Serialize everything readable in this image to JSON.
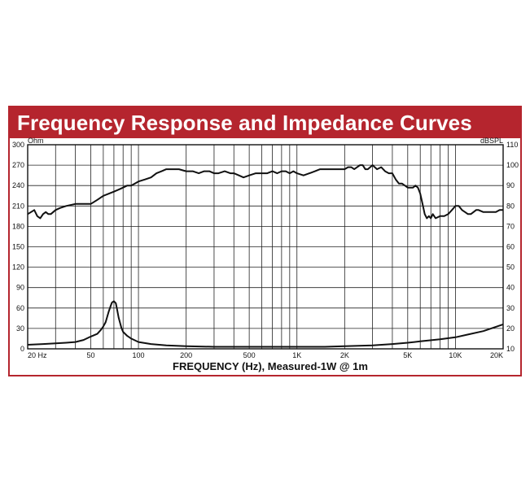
{
  "title": "Frequency Response and Impedance Curves",
  "colors": {
    "frame": "#b5252e",
    "title_bar": "#b5252e",
    "title_text": "#ffffff",
    "grid": "#222222",
    "curve": "#111111"
  },
  "chart_data": {
    "type": "line",
    "title": "Frequency Response and Impedance Curves",
    "xlabel": "FREQUENCY (Hz), Measured-1W @ 1m",
    "ylabel_left": "Ohm",
    "ylabel_right": "dBSPL",
    "x_scale": "log",
    "xlim": [
      20,
      20000
    ],
    "ylim_left": [
      0,
      300
    ],
    "ylim_right": [
      10,
      110
    ],
    "grid": true,
    "x_tick_labels": [
      "20 Hz",
      "50",
      "100",
      "200",
      "500",
      "1K",
      "2K",
      "5K",
      "10K",
      "20K"
    ],
    "x_tick_values": [
      20,
      50,
      100,
      200,
      500,
      1000,
      2000,
      5000,
      10000,
      20000
    ],
    "y_left_ticks": [
      "0",
      "30",
      "60",
      "90",
      "120",
      "150",
      "180",
      "210",
      "240",
      "270",
      "300"
    ],
    "y_right_ticks": [
      "10",
      "20",
      "30",
      "40",
      "50",
      "60",
      "70",
      "80",
      "90",
      "100",
      "110"
    ],
    "series": [
      {
        "axis": "right",
        "x": [
          20,
          21,
          22,
          23,
          24,
          25,
          26,
          27,
          28,
          30,
          32,
          35,
          40,
          45,
          50,
          55,
          60,
          65,
          70,
          75,
          80,
          85,
          90,
          100,
          110,
          120,
          130,
          140,
          150,
          160,
          170,
          180,
          200,
          220,
          240,
          260,
          280,
          300,
          320,
          350,
          380,
          400,
          430,
          460,
          500,
          550,
          600,
          650,
          700,
          750,
          800,
          850,
          900,
          950,
          1000,
          1100,
          1200,
          1300,
          1400,
          1500,
          1600,
          1700,
          1800,
          1900,
          2000,
          2100,
          2200,
          2300,
          2400,
          2500,
          2600,
          2700,
          2800,
          2900,
          3000,
          3200,
          3400,
          3600,
          3800,
          4000,
          4200,
          4400,
          4600,
          4800,
          5000,
          5200,
          5400,
          5600,
          5800,
          6000,
          6200,
          6400,
          6600,
          6800,
          7000,
          7200,
          7500,
          8000,
          8500,
          9000,
          9500,
          10000,
          10500,
          11000,
          11500,
          12000,
          12500,
          13000,
          13500,
          14000,
          15000,
          16000,
          17000,
          18000,
          19000,
          20000
        ],
        "y": [
          76,
          77,
          78,
          75,
          74,
          76,
          77,
          76,
          76,
          78,
          79,
          80,
          81,
          81,
          81,
          83,
          85,
          86,
          87,
          88,
          89,
          90,
          90,
          92,
          93,
          94,
          96,
          97,
          98,
          98,
          98,
          98,
          97,
          97,
          96,
          97,
          97,
          96,
          96,
          97,
          96,
          96,
          95,
          94,
          95,
          96,
          96,
          96,
          97,
          96,
          97,
          97,
          96,
          97,
          96,
          95,
          96,
          97,
          98,
          98,
          98,
          98,
          98,
          98,
          98,
          99,
          99,
          98,
          99,
          100,
          100,
          98,
          98,
          99,
          100,
          98,
          99,
          97,
          96,
          96,
          93,
          91,
          91,
          90,
          89,
          89,
          89,
          90,
          89,
          86,
          81,
          76,
          74,
          75,
          74,
          76,
          74,
          75,
          75,
          76,
          78,
          80,
          80,
          78,
          77,
          76,
          76,
          77,
          78,
          78,
          77,
          77,
          77,
          77,
          78,
          78
        ]
      },
      {
        "axis": "left",
        "x": [
          20,
          25,
          30,
          35,
          40,
          45,
          50,
          55,
          58,
          60,
          62,
          65,
          67,
          68,
          70,
          72,
          73,
          75,
          78,
          80,
          85,
          90,
          100,
          120,
          150,
          200,
          300,
          400,
          500,
          700,
          1000,
          1500,
          2000,
          3000,
          4000,
          5000,
          6000,
          8000,
          10000,
          12000,
          15000,
          20000
        ],
        "y": [
          6,
          7,
          8,
          9,
          10,
          13,
          18,
          22,
          28,
          33,
          39,
          55,
          64,
          68,
          70,
          67,
          60,
          46,
          31,
          25,
          19,
          15,
          10,
          7,
          5,
          4,
          3,
          3,
          3,
          3,
          3,
          3,
          4,
          5,
          7,
          9,
          11,
          14,
          17,
          21,
          26,
          36
        ]
      }
    ]
  }
}
